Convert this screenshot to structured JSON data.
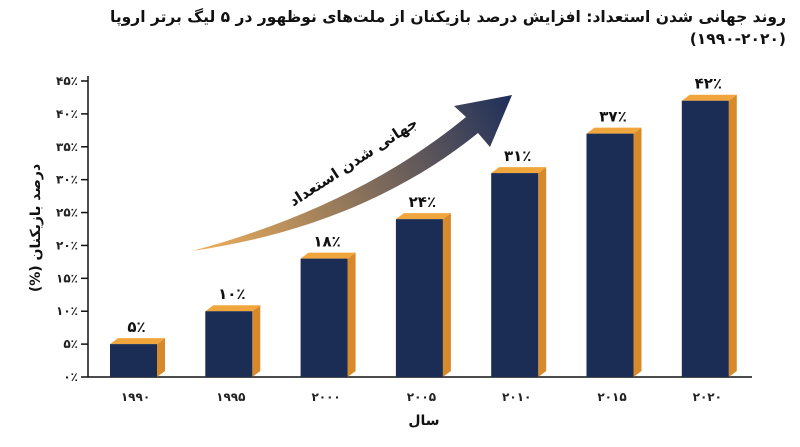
{
  "title_line1": "روند جهانی شدن استعداد: افزایش درصد بازیکنان از ملت‌های نوظهور در ۵ لیگ برتر اروپا",
  "title_line2": "(۱۹۹۰-۲۰۲۰)",
  "colors": {
    "bar_front": "#1c2d55",
    "bar_side": "#d88a2a",
    "bar_top": "#f0a63c",
    "arrow_start": "#f3b35c",
    "arrow_end": "#1e2f5a"
  },
  "chart_data": {
    "type": "bar",
    "categories": [
      "۱۹۹۰",
      "۱۹۹۵",
      "۲۰۰۰",
      "۲۰۰۵",
      "۲۰۱۰",
      "۲۰۱۵",
      "۲۰۲۰"
    ],
    "values": [
      5,
      10,
      18,
      24,
      31,
      37,
      42
    ],
    "value_labels": [
      "۵٪",
      "۱۰٪",
      "۱۸٪",
      "۲۴٪",
      "۳۱٪",
      "۳۷٪",
      "۴۲٪"
    ],
    "xlabel": "سال",
    "ylabel": "درصد بازیکنان (%)",
    "ylim": [
      0,
      45
    ],
    "yticks": [
      0,
      5,
      10,
      15,
      20,
      25,
      30,
      35,
      40,
      45
    ],
    "ytick_labels": [
      "۰٪",
      "۵٪",
      "۱۰٪",
      "۱۵٪",
      "۲۰٪",
      "۲۵٪",
      "۳۰٪",
      "۳۵٪",
      "۴۰٪",
      "۴۵٪"
    ],
    "grid": false,
    "annotation": "جهانی شدن استعداد"
  }
}
